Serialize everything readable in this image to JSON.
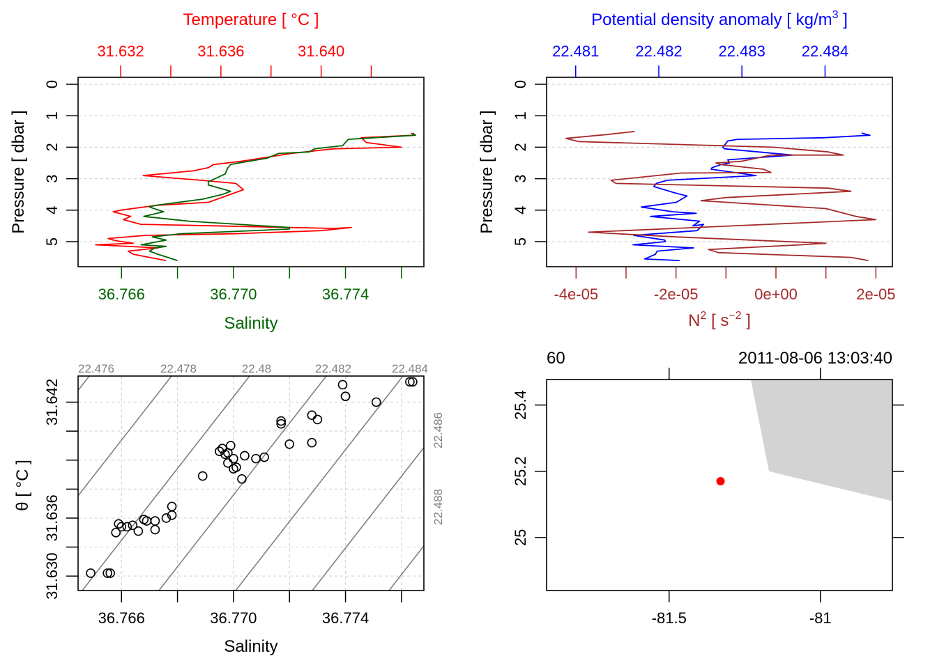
{
  "colors": {
    "temperature": "#ff0000",
    "salinity": "#006400",
    "density": "#0000ff",
    "n2": "#a52a2a",
    "isopycnal": "#808080",
    "grid": "#d3d3d3",
    "land": "#d3d3d3",
    "station": "#ff0000"
  },
  "chart_data": [
    {
      "id": "ts-profile",
      "type": "line",
      "title": "Temperature [ °C ]",
      "xlabel": "Salinity",
      "ylabel": "Pressure [ dbar ]",
      "y_ticks": [
        "0",
        "1",
        "2",
        "3",
        "4",
        "5"
      ],
      "ylim": [
        5.8,
        -0.2
      ],
      "grid": true,
      "x_bottom": {
        "label": "Salinity",
        "ticks": [
          36.766,
          36.768,
          36.77,
          36.772,
          36.774,
          36.776
        ],
        "tick_labels": [
          "36.766",
          "",
          "36.770",
          "",
          "36.774",
          ""
        ],
        "range": [
          36.76445,
          36.7768
        ]
      },
      "x_top": {
        "label": "Temperature [ °C ]",
        "ticks": [
          31.632,
          31.634,
          31.636,
          31.638,
          31.64,
          31.642
        ],
        "tick_labels": [
          "31.632",
          "",
          "31.636",
          "",
          "31.640",
          ""
        ],
        "range": [
          31.6303,
          31.6441
        ]
      },
      "series": [
        {
          "name": "Temperature",
          "axis": "top",
          "points": [
            [
              31.6436,
              1.55
            ],
            [
              31.6437,
              1.62
            ],
            [
              31.6416,
              1.7
            ],
            [
              31.6418,
              1.85
            ],
            [
              31.6432,
              2.0
            ],
            [
              31.6405,
              2.05
            ],
            [
              31.6388,
              2.2
            ],
            [
              31.6368,
              2.45
            ],
            [
              31.6357,
              2.55
            ],
            [
              31.6355,
              2.65
            ],
            [
              31.6349,
              2.75
            ],
            [
              31.6329,
              2.9
            ],
            [
              31.6352,
              3.05
            ],
            [
              31.6366,
              3.15
            ],
            [
              31.6369,
              3.35
            ],
            [
              31.6362,
              3.55
            ],
            [
              31.6355,
              3.75
            ],
            [
              31.6334,
              3.85
            ],
            [
              31.632,
              4.0
            ],
            [
              31.6317,
              4.05
            ],
            [
              31.6324,
              4.2
            ],
            [
              31.6321,
              4.3
            ],
            [
              31.6328,
              4.45
            ],
            [
              31.6405,
              4.58
            ],
            [
              31.6412,
              4.55
            ],
            [
              31.64,
              4.65
            ],
            [
              31.6365,
              4.75
            ],
            [
              31.633,
              4.8
            ],
            [
              31.6315,
              4.9
            ],
            [
              31.6318,
              4.97
            ],
            [
              31.6325,
              5.05
            ],
            [
              31.631,
              5.1
            ],
            [
              31.6335,
              5.2
            ],
            [
              31.6323,
              5.3
            ],
            [
              31.6325,
              5.4
            ],
            [
              31.6338,
              5.6
            ]
          ]
        },
        {
          "name": "Salinity",
          "axis": "bottom",
          "points": [
            [
              36.7764,
              1.55
            ],
            [
              36.7765,
              1.62
            ],
            [
              36.7741,
              1.75
            ],
            [
              36.7739,
              1.95
            ],
            [
              36.7729,
              2.05
            ],
            [
              36.7727,
              2.15
            ],
            [
              36.7716,
              2.2
            ],
            [
              36.7712,
              2.35
            ],
            [
              36.7702,
              2.5
            ],
            [
              36.7699,
              2.55
            ],
            [
              36.7698,
              2.65
            ],
            [
              36.7697,
              2.85
            ],
            [
              36.7691,
              3.1
            ],
            [
              36.7691,
              3.2
            ],
            [
              36.7699,
              3.4
            ],
            [
              36.7696,
              3.5
            ],
            [
              36.7689,
              3.65
            ],
            [
              36.7672,
              3.85
            ],
            [
              36.767,
              3.9
            ],
            [
              36.7675,
              4.05
            ],
            [
              36.7668,
              4.2
            ],
            [
              36.7684,
              4.35
            ],
            [
              36.772,
              4.55
            ],
            [
              36.772,
              4.6
            ],
            [
              36.7681,
              4.75
            ],
            [
              36.7671,
              4.85
            ],
            [
              36.7676,
              4.95
            ],
            [
              36.7667,
              5.1
            ],
            [
              36.7676,
              5.15
            ],
            [
              36.7672,
              5.2
            ],
            [
              36.767,
              5.3
            ],
            [
              36.7673,
              5.4
            ],
            [
              36.768,
              5.6
            ]
          ]
        }
      ]
    },
    {
      "id": "density-n2-profile",
      "type": "line",
      "title": "Potential density anomaly [ kg/m^3 ]",
      "xlabel": "N^2 [ s^-2 ]",
      "ylabel": "Pressure [ dbar ]",
      "y_ticks": [
        "0",
        "1",
        "2",
        "3",
        "4",
        "5"
      ],
      "ylim": [
        5.8,
        -0.2
      ],
      "grid": true,
      "x_bottom": {
        "label": "N2 [ s-2 ]",
        "ticks": [
          -4e-05,
          -3e-05,
          -2e-05,
          -1e-05,
          0,
          1e-05,
          2e-05
        ],
        "tick_labels": [
          "-4e-05",
          "",
          "-2e-05",
          "",
          "0e+00",
          "",
          "2e-05"
        ],
        "range": [
          -4.59e-05,
          2.33e-05
        ]
      },
      "x_top": {
        "label": "Potential density anomaly [ kg/m^3 ]",
        "ticks": [
          22.481,
          22.482,
          22.483,
          22.484
        ],
        "tick_labels": [
          "22.481",
          "22.482",
          "22.483",
          "22.484"
        ],
        "range": [
          22.48065,
          22.48481
        ]
      },
      "series": [
        {
          "name": "Potential density anomaly",
          "axis": "top",
          "points": [
            [
              22.48444,
              1.55
            ],
            [
              22.48454,
              1.62
            ],
            [
              22.48398,
              1.7
            ],
            [
              22.48295,
              1.75
            ],
            [
              22.48283,
              1.8
            ],
            [
              22.48277,
              2.0
            ],
            [
              22.48279,
              2.05
            ],
            [
              22.48361,
              2.25
            ],
            [
              22.48283,
              2.4
            ],
            [
              22.48285,
              2.5
            ],
            [
              22.48275,
              2.55
            ],
            [
              22.48264,
              2.65
            ],
            [
              22.48263,
              2.7
            ],
            [
              22.48317,
              2.9
            ],
            [
              22.4821,
              3.05
            ],
            [
              22.48197,
              3.15
            ],
            [
              22.48194,
              3.25
            ],
            [
              22.48219,
              3.45
            ],
            [
              22.48234,
              3.55
            ],
            [
              22.48221,
              3.75
            ],
            [
              22.48179,
              3.9
            ],
            [
              22.48217,
              4.05
            ],
            [
              22.48245,
              4.1
            ],
            [
              22.4819,
              4.2
            ],
            [
              22.48249,
              4.35
            ],
            [
              22.48241,
              4.5
            ],
            [
              22.48254,
              4.45
            ],
            [
              22.48246,
              4.65
            ],
            [
              22.4817,
              4.8
            ],
            [
              22.48207,
              4.95
            ],
            [
              22.48208,
              5.0
            ],
            [
              22.48169,
              5.1
            ],
            [
              22.48242,
              5.2
            ],
            [
              22.48198,
              5.3
            ],
            [
              22.48196,
              5.4
            ],
            [
              22.48183,
              5.55
            ],
            [
              22.48225,
              5.6
            ]
          ]
        },
        {
          "name": "N2",
          "axis": "bottom",
          "points": [
            [
              -2.83e-05,
              1.5
            ],
            [
              -3.4e-05,
              1.6
            ],
            [
              -4.2e-05,
              1.72
            ],
            [
              -3.95e-05,
              1.82
            ],
            [
              -5e-07,
              2.0
            ],
            [
              1.05e-05,
              2.15
            ],
            [
              1.35e-05,
              2.25
            ],
            [
              -1e-06,
              2.25
            ],
            [
              -7e-06,
              2.45
            ],
            [
              -1.2e-05,
              2.5
            ],
            [
              -1.1e-05,
              2.55
            ],
            [
              -2.5e-06,
              2.7
            ],
            [
              -1e-06,
              2.8
            ],
            [
              -1.9e-05,
              2.82
            ],
            [
              -3.3e-05,
              3.05
            ],
            [
              -3.2e-05,
              3.15
            ],
            [
              1.05e-05,
              3.3
            ],
            [
              1.5e-05,
              3.4
            ],
            [
              -1e-05,
              3.6
            ],
            [
              -1.5e-05,
              3.7
            ],
            [
              1e-05,
              3.95
            ],
            [
              1.6e-05,
              4.2
            ],
            [
              2e-05,
              4.3
            ],
            [
              -3.75e-05,
              4.7
            ],
            [
              -2e-05,
              4.85
            ],
            [
              1e-05,
              5.05
            ],
            [
              5e-06,
              5.1
            ],
            [
              -1.35e-05,
              5.25
            ],
            [
              -1.15e-05,
              5.35
            ],
            [
              1.5e-05,
              5.5
            ],
            [
              1.85e-05,
              5.6
            ]
          ]
        }
      ]
    },
    {
      "id": "ts-diagram",
      "type": "scatter",
      "title": "",
      "xlabel": "Salinity",
      "ylabel": "θ [ °C ]",
      "grid": true,
      "x_ticks": [
        36.766,
        36.768,
        36.77,
        36.772,
        36.774,
        36.776
      ],
      "x_tick_labels": [
        "36.766",
        "",
        "36.770",
        "",
        "36.774",
        ""
      ],
      "xlim": [
        36.76445,
        36.7768
      ],
      "y_ticks": [
        31.63,
        31.632,
        31.634,
        31.636,
        31.638,
        31.64,
        31.642
      ],
      "y_tick_labels": [
        "31.630",
        "",
        "31.636",
        "",
        "",
        "",
        "31.642"
      ],
      "y_tick_labels_full": {
        "31.630": "31.630",
        "31.636": "31.636",
        "31.642": "31.642"
      },
      "ylim": [
        31.629,
        31.6438
      ],
      "isopycnals": {
        "levels": [
          22.476,
          22.478,
          22.48,
          22.482,
          22.484,
          22.486,
          22.488
        ],
        "top_labels": [
          "22.476",
          "22.478",
          "22.48",
          "22.482",
          "22.484"
        ],
        "right_labels": [
          "22.486",
          "22.488"
        ]
      },
      "points": [
        [
          36.7763,
          31.6434
        ],
        [
          36.7764,
          31.6434
        ],
        [
          36.7739,
          31.6432
        ],
        [
          36.774,
          31.6424
        ],
        [
          36.774,
          31.6424
        ],
        [
          36.7751,
          31.642
        ],
        [
          36.7728,
          31.6411
        ],
        [
          36.773,
          31.6408
        ],
        [
          36.7717,
          31.6407
        ],
        [
          36.7717,
          31.6405
        ],
        [
          36.772,
          31.6391
        ],
        [
          36.7728,
          31.6392
        ],
        [
          36.7696,
          31.6388
        ],
        [
          36.7697,
          31.6384
        ],
        [
          36.7698,
          31.6385
        ],
        [
          36.7699,
          31.639
        ],
        [
          36.7695,
          31.6386
        ],
        [
          36.77,
          31.6381
        ],
        [
          36.7704,
          31.6383
        ],
        [
          36.7708,
          31.6381
        ],
        [
          36.7711,
          31.6382
        ],
        [
          36.7698,
          31.6378
        ],
        [
          36.7701,
          31.6375
        ],
        [
          36.77,
          31.6374
        ],
        [
          36.7689,
          31.6369
        ],
        [
          36.7703,
          31.6367
        ],
        [
          36.7678,
          31.6348
        ],
        [
          36.7678,
          31.6342
        ],
        [
          36.7676,
          31.634
        ],
        [
          36.7672,
          31.6338
        ],
        [
          36.7672,
          31.6332
        ],
        [
          36.7669,
          31.6338
        ],
        [
          36.7668,
          31.6339
        ],
        [
          36.7664,
          31.6335
        ],
        [
          36.7662,
          31.6334
        ],
        [
          36.766,
          31.6334
        ],
        [
          36.7666,
          31.6331
        ],
        [
          36.7659,
          31.6336
        ],
        [
          36.7658,
          31.633
        ],
        [
          36.7656,
          31.6302
        ],
        [
          36.7655,
          31.6302
        ],
        [
          36.7649,
          31.6302
        ]
      ]
    },
    {
      "id": "station-map",
      "type": "scatter",
      "title": "",
      "top_labels": [
        "60",
        "2011-08-06 13:03:40"
      ],
      "xlabel": "",
      "ylabel": "",
      "x_ticks": [
        -81.5,
        -81
      ],
      "x_tick_labels": [
        "-81.5",
        "-81"
      ],
      "xlim": [
        -81.905,
        -80.762
      ],
      "y_ticks": [
        25,
        25.2,
        25.4
      ],
      "y_tick_labels": [
        "25",
        "25.2",
        "25.4"
      ],
      "ylim": [
        24.84,
        25.477
      ],
      "station": [
        -81.33,
        25.17
      ],
      "land_polygon": [
        [
          -81.23,
          25.477
        ],
        [
          -80.762,
          25.477
        ],
        [
          -80.762,
          25.11
        ],
        [
          -81.17,
          25.2
        ],
        [
          -81.23,
          25.477
        ]
      ]
    }
  ]
}
